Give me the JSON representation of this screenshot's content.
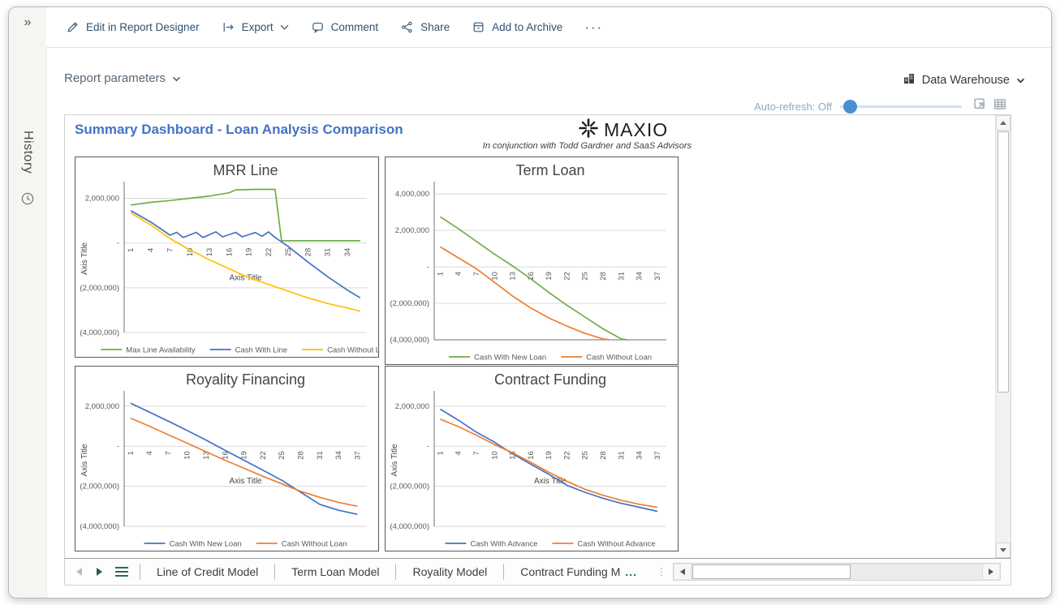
{
  "colors": {
    "accent_blue": "#4472C4",
    "excel_green": "#217346",
    "slider_blue": "#4A8FD2",
    "series_green": "#70AD47",
    "series_blue": "#4472C4",
    "series_yellow": "#FFC000",
    "series_orange": "#ED7D31"
  },
  "sidebar": {
    "collapse_glyph": "»",
    "history_label": "History"
  },
  "toolbar": {
    "items": [
      {
        "label": "Edit in Report Designer"
      },
      {
        "label": "Export"
      },
      {
        "label": "Comment"
      },
      {
        "label": "Share"
      },
      {
        "label": "Add to Archive"
      }
    ],
    "overflow_label": "···"
  },
  "params_bar": {
    "report_parameters_label": "Report parameters",
    "data_source_label": "Data Warehouse"
  },
  "refresh_bar": {
    "label": "Auto-refresh: Off"
  },
  "report": {
    "title": "Summary Dashboard - Loan Analysis Comparison",
    "logo_text": "MAXIO",
    "logo_caption": "In conjunction with Todd Gardner and SaaS Advisors"
  },
  "chart_data": [
    {
      "type": "line",
      "title": "MRR Line",
      "xlabel": "Axis Title",
      "ylabel": "Axis Title",
      "xlim": [
        0,
        37
      ],
      "ylim": [
        -4000000,
        2600000
      ],
      "x_ticks": [
        1,
        4,
        7,
        10,
        13,
        16,
        19,
        22,
        25,
        28,
        31,
        34
      ],
      "y_ticks": [
        {
          "value": 2000000,
          "label": "2,000,000"
        },
        {
          "value": 0,
          "label": "-"
        },
        {
          "value": -2000000,
          "label": "(2,000,000)"
        },
        {
          "value": -4000000,
          "label": "(4,000,000)"
        }
      ],
      "grid": true,
      "legend_position": "bottom",
      "series": [
        {
          "name": "Max Line Availability",
          "color": "#70AD47",
          "points": [
            [
              1,
              1700000
            ],
            [
              4,
              1820000
            ],
            [
              7,
              1900000
            ],
            [
              10,
              2000000
            ],
            [
              13,
              2100000
            ],
            [
              16,
              2250000
            ],
            [
              17,
              2380000
            ],
            [
              20,
              2400000
            ],
            [
              23,
              2400000
            ],
            [
              24,
              100000
            ],
            [
              36,
              100000
            ]
          ]
        },
        {
          "name": "Cash With Line",
          "color": "#4472C4",
          "points": [
            [
              1,
              1450000
            ],
            [
              4,
              950000
            ],
            [
              7,
              350000
            ],
            [
              8,
              480000
            ],
            [
              9,
              250000
            ],
            [
              11,
              480000
            ],
            [
              12,
              250000
            ],
            [
              14,
              500000
            ],
            [
              15,
              280000
            ],
            [
              17,
              480000
            ],
            [
              18,
              280000
            ],
            [
              20,
              470000
            ],
            [
              21,
              300000
            ],
            [
              22,
              500000
            ],
            [
              23,
              250000
            ],
            [
              25,
              -150000
            ],
            [
              28,
              -850000
            ],
            [
              31,
              -1500000
            ],
            [
              34,
              -2100000
            ],
            [
              36,
              -2450000
            ]
          ]
        },
        {
          "name": "Cash Without Line",
          "color": "#FFC000",
          "points": [
            [
              1,
              1350000
            ],
            [
              4,
              820000
            ],
            [
              7,
              200000
            ],
            [
              10,
              -300000
            ],
            [
              13,
              -750000
            ],
            [
              16,
              -1150000
            ],
            [
              19,
              -1550000
            ],
            [
              22,
              -1850000
            ],
            [
              25,
              -2150000
            ],
            [
              28,
              -2450000
            ],
            [
              31,
              -2700000
            ],
            [
              34,
              -2900000
            ],
            [
              36,
              -3050000
            ]
          ]
        }
      ]
    },
    {
      "type": "line",
      "title": "Term Loan",
      "xlabel": "",
      "ylabel": "",
      "xlim": [
        0,
        38.5
      ],
      "ylim": [
        -4000000,
        4500000
      ],
      "x_ticks": [
        1,
        4,
        7,
        10,
        13,
        16,
        19,
        22,
        25,
        28,
        31,
        34,
        37
      ],
      "y_ticks": [
        {
          "value": 4000000,
          "label": "4,000,000"
        },
        {
          "value": 2000000,
          "label": "2,000,000"
        },
        {
          "value": 0,
          "label": "-"
        },
        {
          "value": -2000000,
          "label": "(2,000,000)"
        },
        {
          "value": -4000000,
          "label": "(4,000,000)"
        }
      ],
      "grid": true,
      "baseline_axis": true,
      "legend_position": "bottom",
      "series": [
        {
          "name": "Cash With New Loan",
          "color": "#70AD47",
          "points": [
            [
              1,
              2750000
            ],
            [
              4,
              2100000
            ],
            [
              7,
              1400000
            ],
            [
              10,
              700000
            ],
            [
              13,
              50000
            ],
            [
              16,
              -650000
            ],
            [
              19,
              -1400000
            ],
            [
              22,
              -2100000
            ],
            [
              25,
              -2750000
            ],
            [
              28,
              -3400000
            ],
            [
              31,
              -3950000
            ],
            [
              32,
              -4000000
            ]
          ]
        },
        {
          "name": "Cash Without Loan",
          "color": "#ED7D31",
          "points": [
            [
              1,
              1100000
            ],
            [
              4,
              500000
            ],
            [
              7,
              -100000
            ],
            [
              10,
              -850000
            ],
            [
              13,
              -1600000
            ],
            [
              16,
              -2250000
            ],
            [
              19,
              -2800000
            ],
            [
              22,
              -3250000
            ],
            [
              25,
              -3650000
            ],
            [
              28,
              -3950000
            ],
            [
              29,
              -4000000
            ]
          ]
        }
      ]
    },
    {
      "type": "line",
      "title": "Royality Financing",
      "xlabel": "Axis Title",
      "ylabel": "Axis Title",
      "xlim": [
        0,
        38.5
      ],
      "ylim": [
        -4000000,
        2600000
      ],
      "x_ticks": [
        1,
        4,
        7,
        10,
        13,
        16,
        19,
        22,
        25,
        28,
        31,
        34,
        37
      ],
      "y_ticks": [
        {
          "value": 2000000,
          "label": "2,000,000"
        },
        {
          "value": 0,
          "label": "-"
        },
        {
          "value": -2000000,
          "label": "(2,000,000)"
        },
        {
          "value": -4000000,
          "label": "(4,000,000)"
        }
      ],
      "grid": true,
      "legend_position": "bottom",
      "series": [
        {
          "name": "Cash With New Loan",
          "color": "#4472C4",
          "points": [
            [
              1,
              2150000
            ],
            [
              4,
              1700000
            ],
            [
              7,
              1250000
            ],
            [
              10,
              780000
            ],
            [
              13,
              300000
            ],
            [
              16,
              -200000
            ],
            [
              19,
              -700000
            ],
            [
              22,
              -1200000
            ],
            [
              25,
              -1700000
            ],
            [
              28,
              -2300000
            ],
            [
              31,
              -2900000
            ],
            [
              34,
              -3200000
            ],
            [
              37,
              -3400000
            ]
          ]
        },
        {
          "name": "Cash Without Loan",
          "color": "#ED7D31",
          "points": [
            [
              1,
              1400000
            ],
            [
              4,
              1000000
            ],
            [
              7,
              570000
            ],
            [
              10,
              150000
            ],
            [
              13,
              -280000
            ],
            [
              16,
              -700000
            ],
            [
              19,
              -1100000
            ],
            [
              22,
              -1500000
            ],
            [
              25,
              -1880000
            ],
            [
              28,
              -2250000
            ],
            [
              31,
              -2550000
            ],
            [
              34,
              -2800000
            ],
            [
              37,
              -3000000
            ]
          ]
        }
      ]
    },
    {
      "type": "line",
      "title": "Contract Funding",
      "xlabel": "Axis Title",
      "ylabel": "Axis Title",
      "xlim": [
        0,
        38.5
      ],
      "ylim": [
        -4000000,
        2600000
      ],
      "x_ticks": [
        1,
        4,
        7,
        10,
        13,
        16,
        19,
        22,
        25,
        28,
        31,
        34,
        37
      ],
      "y_ticks": [
        {
          "value": 2000000,
          "label": "2,000,000"
        },
        {
          "value": 0,
          "label": "-"
        },
        {
          "value": -2000000,
          "label": "(2,000,000)"
        },
        {
          "value": -4000000,
          "label": "(4,000,000)"
        }
      ],
      "grid": true,
      "legend_position": "bottom",
      "series": [
        {
          "name": "Cash With Advance",
          "color": "#4472C4",
          "points": [
            [
              1,
              1850000
            ],
            [
              4,
              1300000
            ],
            [
              7,
              700000
            ],
            [
              10,
              200000
            ],
            [
              13,
              -380000
            ],
            [
              16,
              -900000
            ],
            [
              19,
              -1400000
            ],
            [
              22,
              -1950000
            ],
            [
              25,
              -2300000
            ],
            [
              28,
              -2600000
            ],
            [
              31,
              -2850000
            ],
            [
              34,
              -3050000
            ],
            [
              37,
              -3250000
            ]
          ]
        },
        {
          "name": "Cash Without Advance",
          "color": "#ED7D31",
          "points": [
            [
              1,
              1350000
            ],
            [
              4,
              980000
            ],
            [
              7,
              550000
            ],
            [
              10,
              80000
            ],
            [
              13,
              -330000
            ],
            [
              16,
              -800000
            ],
            [
              19,
              -1300000
            ],
            [
              22,
              -1750000
            ],
            [
              25,
              -2150000
            ],
            [
              28,
              -2450000
            ],
            [
              31,
              -2700000
            ],
            [
              34,
              -2900000
            ],
            [
              37,
              -3050000
            ]
          ]
        }
      ]
    }
  ],
  "sheet_tabs": {
    "tabs": [
      "Line of Credit Model",
      "Term Loan Model",
      "Royality Model",
      "Contract Funding M"
    ],
    "truncation_ellipsis": "..."
  }
}
